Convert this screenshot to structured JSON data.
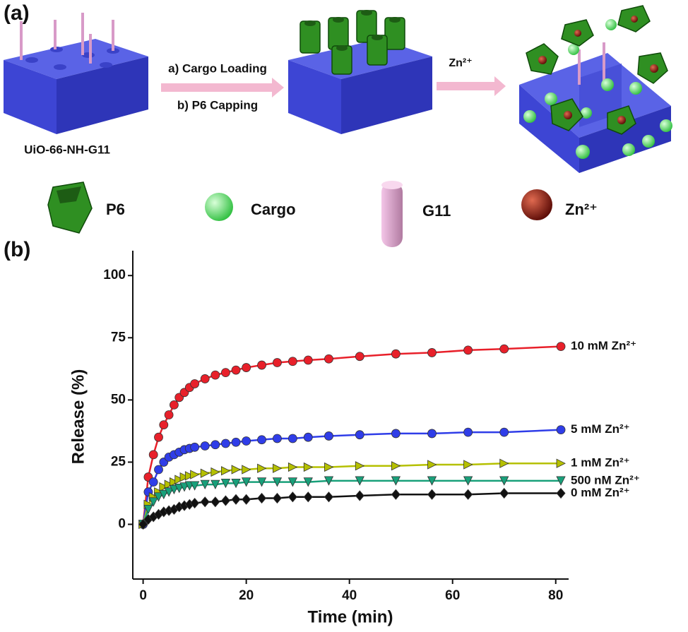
{
  "panel_a": {
    "label": "(a)",
    "material": "UiO-66-NH-G11",
    "step_1": "a) Cargo Loading",
    "step_2": "b) P6 Capping",
    "trigger": "Zn²⁺",
    "legend": [
      "P6",
      "Cargo",
      "G11",
      "Zn²⁺"
    ]
  },
  "chart_data": {
    "type": "line",
    "panel_label": "(b)",
    "x_label": "Time (min)",
    "y_label": "Release (%)",
    "x": [
      0,
      1,
      2,
      3,
      4,
      5,
      6,
      7,
      8,
      9,
      10,
      12,
      14,
      16,
      18,
      20,
      23,
      26,
      29,
      32,
      36,
      42,
      49,
      56,
      63,
      70,
      81
    ],
    "xlim": [
      -2,
      82.5
    ],
    "xticks": [
      0,
      20,
      40,
      60,
      80
    ],
    "ylim": [
      -22,
      110
    ],
    "yticks": [
      0,
      25,
      50,
      75,
      100
    ],
    "series": [
      {
        "name": "10 mM Zn²⁺",
        "color": "#e8202a",
        "marker": "circle",
        "values": [
          0,
          19,
          28,
          35,
          40,
          44,
          48,
          51,
          53,
          55,
          56.5,
          58.5,
          60,
          61,
          62,
          63,
          64,
          65,
          65.5,
          66,
          66.5,
          67.5,
          68.5,
          69,
          70,
          70.5,
          71.5
        ]
      },
      {
        "name": "5 mM Zn²⁺",
        "color": "#2f3de8",
        "marker": "circle",
        "values": [
          0,
          13,
          17,
          22,
          25,
          27,
          28,
          29,
          30,
          30.5,
          31,
          31.5,
          32,
          32.5,
          33,
          33.5,
          34,
          34.5,
          34.5,
          35,
          35.5,
          36,
          36.5,
          36.5,
          37,
          37,
          38
        ]
      },
      {
        "name": "1 mM Zn²⁺",
        "color": "#b5c000",
        "marker": "triangle-right",
        "values": [
          0,
          8,
          11,
          13,
          15,
          16,
          17,
          18,
          19,
          19.5,
          20,
          20.5,
          21,
          21.5,
          22,
          22,
          22.5,
          22.5,
          23,
          23,
          23,
          23.5,
          23.5,
          24,
          24,
          24.5,
          24.5
        ]
      },
      {
        "name": "500 nM Zn²⁺",
        "color": "#18a07a",
        "marker": "triangle-down",
        "values": [
          0,
          6,
          9,
          11,
          12,
          13,
          14,
          14.5,
          15,
          15.5,
          15.5,
          16,
          16,
          16.5,
          16.5,
          17,
          17,
          17,
          17,
          17,
          17.5,
          17.5,
          17.5,
          17.5,
          17.5,
          17.5,
          17.5
        ]
      },
      {
        "name": "0 mM Zn²⁺",
        "color": "#111111",
        "marker": "diamond",
        "values": [
          0,
          2,
          3,
          4,
          5,
          5.5,
          6,
          7,
          7.5,
          8,
          8.5,
          9,
          9,
          9.5,
          10,
          10,
          10.5,
          10.5,
          11,
          11,
          11,
          11.5,
          12,
          12,
          12,
          12.5,
          12.5
        ]
      }
    ]
  }
}
